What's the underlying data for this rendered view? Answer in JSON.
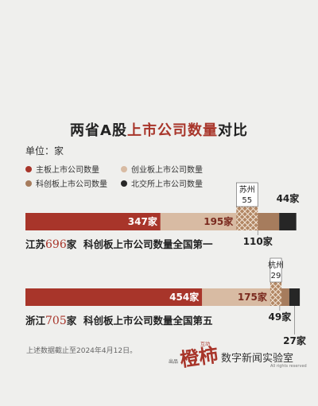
{
  "title_prefix": "两省A股",
  "title_highlight": "上市公司数量",
  "title_suffix": "对比",
  "unit": "单位：家",
  "legend": [
    {
      "label": "主板上市公司数量",
      "color": "#a8352a"
    },
    {
      "label": "创业板上市公司数量",
      "color": "#d8bba3"
    },
    {
      "label": "科创板上市公司数量",
      "color": "#a67c5d"
    },
    {
      "label": "北交所上市公司数量",
      "color": "#262626"
    }
  ],
  "chart_data": {
    "type": "bar",
    "orientation": "horizontal-stacked",
    "categories": [
      "江苏",
      "浙江"
    ],
    "series": [
      {
        "name": "主板上市公司数量",
        "values": [
          347,
          454
        ],
        "labels": [
          "347家",
          "454家"
        ]
      },
      {
        "name": "创业板上市公司数量",
        "values": [
          195,
          175
        ],
        "labels": [
          "195家",
          "175家"
        ]
      },
      {
        "name": "科创板上市公司数量",
        "values": [
          110,
          49
        ],
        "labels": [
          "110家",
          "49家"
        ]
      },
      {
        "name": "北交所上市公司数量",
        "values": [
          44,
          27
        ],
        "labels": [
          "44家",
          "27家"
        ]
      }
    ],
    "city_sub": [
      {
        "name": "苏州",
        "value": "55"
      },
      {
        "name": "杭州",
        "value": "29"
      }
    ]
  },
  "summaries": [
    {
      "name": "江苏",
      "total": "696",
      "suffix": "家",
      "note": "科创板上市公司数量全国第一"
    },
    {
      "name": "浙江",
      "total": "705",
      "suffix": "家",
      "note": "科创板上市公司数量全国第五"
    }
  ],
  "note": "上述数据截止至2024年4月12日。",
  "brand": {
    "small": "出品",
    "logo": "橙柿",
    "logo_small": "互动",
    "name": "数字新闻实验室",
    "rights": "All rights reserved"
  }
}
